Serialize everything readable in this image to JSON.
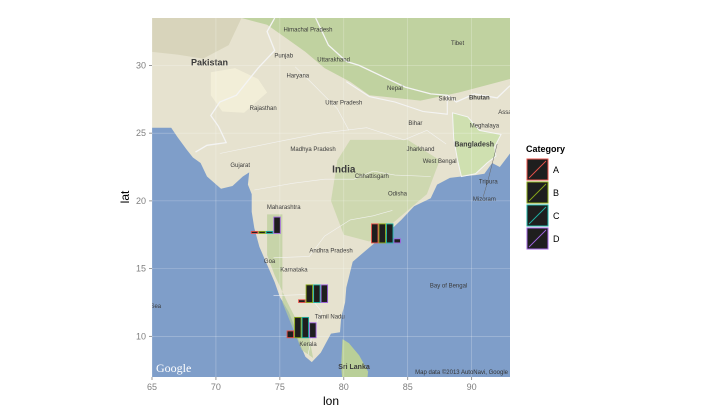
{
  "chart_data": {
    "type": "bar",
    "xlabel": "lon",
    "ylabel": "lat",
    "xlim": [
      65,
      93
    ],
    "ylim": [
      7,
      33.5
    ],
    "xticks": [
      65,
      70,
      75,
      80,
      85,
      90
    ],
    "yticks": [
      10,
      15,
      20,
      25,
      30
    ],
    "grid": true,
    "legend": {
      "title": "Category",
      "placement": "right",
      "entries": [
        {
          "key": "A",
          "color": "#e8524a"
        },
        {
          "key": "B",
          "color": "#8aa81a"
        },
        {
          "key": "C",
          "color": "#1fb3a6"
        },
        {
          "key": "D",
          "color": "#a065e0"
        }
      ]
    },
    "bar_fill": "#1e1e1e",
    "groups": [
      {
        "lon": 73.9,
        "lat": 17.6,
        "values": {
          "A": 0.15,
          "B": 0.15,
          "C": 0.15,
          "D": 1.2
        }
      },
      {
        "lon": 83.3,
        "lat": 16.9,
        "values": {
          "A": 1.4,
          "B": 1.4,
          "C": 1.4,
          "D": 0.3
        }
      },
      {
        "lon": 77.6,
        "lat": 12.5,
        "values": {
          "A": 0.2,
          "B": 1.3,
          "C": 1.3,
          "D": 1.3
        }
      },
      {
        "lon": 76.7,
        "lat": 9.9,
        "values": {
          "A": 0.5,
          "B": 1.5,
          "C": 1.5,
          "D": 1.1
        }
      }
    ]
  },
  "map": {
    "land_color": "#e6e2cf",
    "green_color": "#b9cf98",
    "water_color": "#7f9ec9",
    "border_color": "#f4f4f4",
    "labels": [
      {
        "text": "Pakistan",
        "lon": 69.5,
        "lat": 30.0,
        "size": 9,
        "bold": true
      },
      {
        "text": "Himachal Pradesh",
        "lon": 77.2,
        "lat": 32.5,
        "size": 6,
        "bold": false
      },
      {
        "text": "Punjab",
        "lon": 75.3,
        "lat": 30.6,
        "size": 6,
        "bold": false
      },
      {
        "text": "Uttarakhand",
        "lon": 79.2,
        "lat": 30.3,
        "size": 6,
        "bold": false
      },
      {
        "text": "Tibet",
        "lon": 88.9,
        "lat": 31.5,
        "size": 6,
        "bold": false
      },
      {
        "text": "Haryana",
        "lon": 76.4,
        "lat": 29.1,
        "size": 6,
        "bold": false
      },
      {
        "text": "Uttar Pradesh",
        "lon": 80.0,
        "lat": 27.1,
        "size": 6,
        "bold": false
      },
      {
        "text": "Nepal",
        "lon": 84.0,
        "lat": 28.2,
        "size": 6,
        "bold": false
      },
      {
        "text": "Sikkim",
        "lon": 88.1,
        "lat": 27.4,
        "size": 6,
        "bold": false
      },
      {
        "text": "Bhutan",
        "lon": 90.6,
        "lat": 27.5,
        "size": 6,
        "bold": true
      },
      {
        "text": "Assam",
        "lon": 92.8,
        "lat": 26.4,
        "size": 6,
        "bold": false
      },
      {
        "text": "Rajasthan",
        "lon": 73.7,
        "lat": 26.7,
        "size": 6,
        "bold": false
      },
      {
        "text": "Bihar",
        "lon": 85.6,
        "lat": 25.6,
        "size": 6,
        "bold": false
      },
      {
        "text": "Meghalaya",
        "lon": 91.0,
        "lat": 25.4,
        "size": 6,
        "bold": false
      },
      {
        "text": "Madhya Pradesh",
        "lon": 77.6,
        "lat": 23.7,
        "size": 6,
        "bold": false
      },
      {
        "text": "Bangladesh",
        "lon": 90.2,
        "lat": 24.0,
        "size": 7,
        "bold": true
      },
      {
        "text": "Gujarat",
        "lon": 71.9,
        "lat": 22.5,
        "size": 6,
        "bold": false
      },
      {
        "text": "Jharkhand",
        "lon": 86.0,
        "lat": 23.7,
        "size": 6,
        "bold": false
      },
      {
        "text": "India",
        "lon": 80.0,
        "lat": 22.1,
        "size": 10,
        "bold": true
      },
      {
        "text": "West Bengal",
        "lon": 87.5,
        "lat": 22.8,
        "size": 6,
        "bold": false
      },
      {
        "text": "Chhattisgarh",
        "lon": 82.2,
        "lat": 21.7,
        "size": 6,
        "bold": false
      },
      {
        "text": "Tripura",
        "lon": 91.3,
        "lat": 21.3,
        "size": 6,
        "bold": false
      },
      {
        "text": "Mizoram",
        "lon": 91.0,
        "lat": 20.0,
        "size": 6,
        "bold": false
      },
      {
        "text": "Odisha",
        "lon": 84.2,
        "lat": 20.4,
        "size": 6,
        "bold": false
      },
      {
        "text": "Maharashtra",
        "lon": 75.3,
        "lat": 19.4,
        "size": 6,
        "bold": false
      },
      {
        "text": "Andhra Pradesh",
        "lon": 79.0,
        "lat": 16.2,
        "size": 6,
        "bold": false
      },
      {
        "text": "Goa",
        "lon": 74.2,
        "lat": 15.4,
        "size": 6,
        "bold": false
      },
      {
        "text": "Karnataka",
        "lon": 76.1,
        "lat": 14.8,
        "size": 6,
        "bold": false
      },
      {
        "text": "Bay of Bengal",
        "lon": 88.2,
        "lat": 13.6,
        "size": 6,
        "bold": false
      },
      {
        "text": "Sea",
        "lon": 65.3,
        "lat": 12.1,
        "size": 6,
        "bold": false
      },
      {
        "text": "Tamil Nadu",
        "lon": 78.9,
        "lat": 11.3,
        "size": 6,
        "bold": false
      },
      {
        "text": "Kerala",
        "lon": 77.2,
        "lat": 9.3,
        "size": 6,
        "bold": false
      },
      {
        "text": "Sri Lanka",
        "lon": 80.8,
        "lat": 7.6,
        "size": 7,
        "bold": true
      }
    ],
    "attribution": "Map data ©2013 AutoNavi, Google",
    "logo": "Google"
  }
}
